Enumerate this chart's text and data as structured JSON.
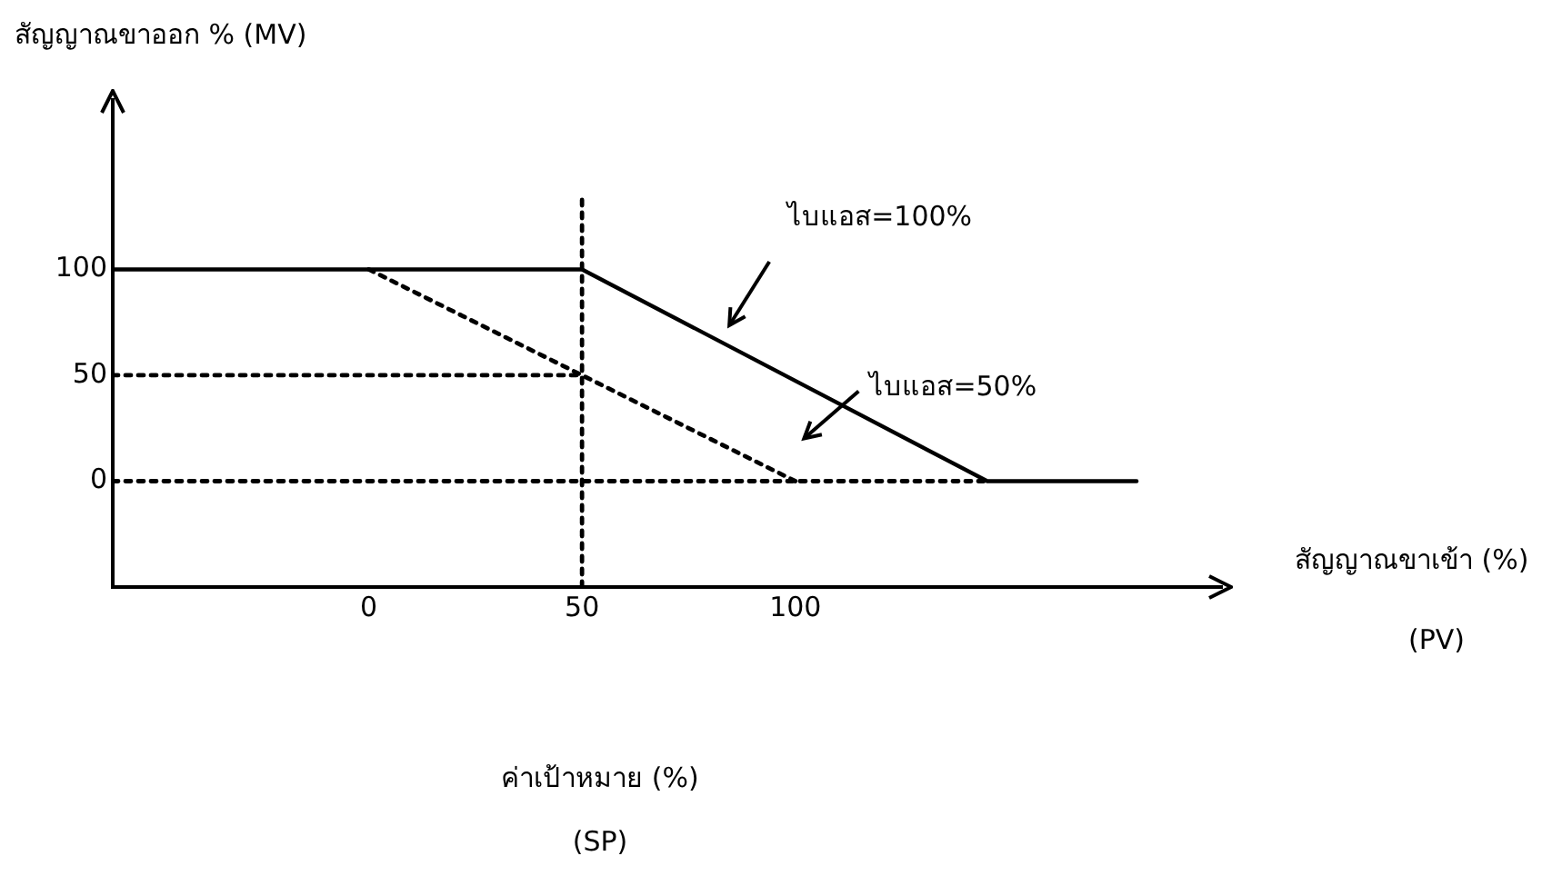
{
  "chart_data": {
    "type": "line",
    "ylabel": "สัญญาณขาออก % (MV)",
    "xlabel": "สัญญาณขาเข้า (%)",
    "annotations": [
      "(PV)",
      "ค่าเป้าหมาย (%)",
      "(SP)"
    ],
    "xlim": [
      -60,
      200
    ],
    "ylim": [
      -50,
      180
    ],
    "xticks": [
      0,
      50,
      100
    ],
    "yticks": [
      0,
      50,
      100
    ],
    "grid": false,
    "legend": false,
    "marker": "none",
    "series": [
      {
        "name": "ไบแอส=100%",
        "color": "#000000",
        "line_style": "solid",
        "x": [
          -60,
          50,
          145,
          180
        ],
        "values": [
          100,
          100,
          0,
          0
        ]
      },
      {
        "name": "ไบแอส=50%",
        "color": "#000000",
        "line_style": "dotted",
        "x": [
          0,
          100
        ],
        "values": [
          100,
          0
        ]
      },
      {
        "color": "#000000",
        "line_style": "dotted",
        "x": [
          -60,
          50
        ],
        "values": [
          50,
          50
        ]
      },
      {
        "color": "#000000",
        "line_style": "dotted",
        "x": [
          -60,
          145
        ],
        "values": [
          0,
          0
        ]
      },
      {
        "color": "#000000",
        "line_style": "dotted",
        "x": [
          50,
          50
        ],
        "values": [
          -50,
          135
        ]
      }
    ]
  }
}
